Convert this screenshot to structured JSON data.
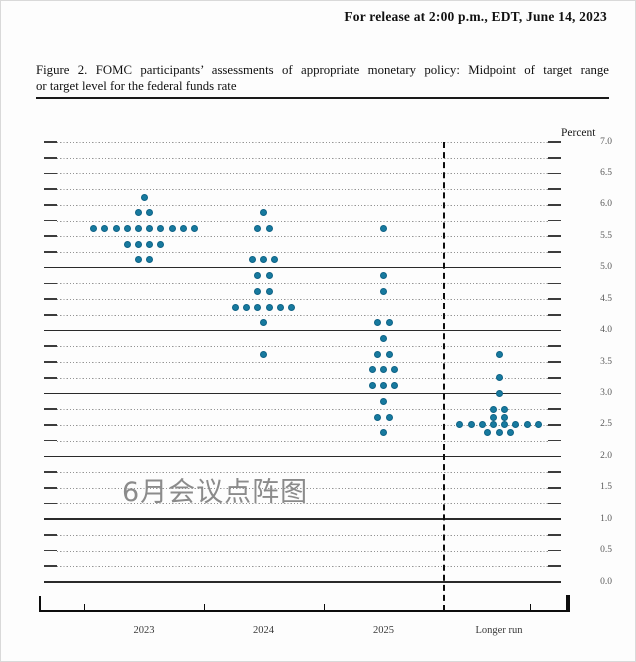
{
  "header": {
    "release_line": "For release at 2:00 p.m., EDT, June 14, 2023"
  },
  "caption": {
    "line1": "Figure 2.  FOMC participants’ assessments of appropriate monetary policy:  Midpoint of target range",
    "line2": "or target level for the federal funds rate"
  },
  "watermark": "6月会议点阵图",
  "chart_data": {
    "type": "scatter",
    "title": "FOMC participants’ assessments of appropriate monetary policy: Midpoint of target range or target level for the federal funds rate",
    "ylabel": "Percent",
    "ylim": [
      0.0,
      7.0
    ],
    "grid_interval": 0.25,
    "label_interval": 0.5,
    "solid_gridlines": [
      0,
      1,
      2,
      3,
      4,
      5
    ],
    "ytick_labels": [
      "7.0",
      "6.5",
      "6.0",
      "5.5",
      "5.0",
      "4.5",
      "4.0",
      "3.5",
      "3.0",
      "2.5",
      "2.0",
      "1.5",
      "1.0",
      "0.5",
      "0.0"
    ],
    "categories": [
      "2023",
      "2024",
      "2025",
      "Longer run"
    ],
    "dot_color": "#177a9f",
    "dot_edge_color": "#0f6386",
    "series": [
      {
        "name": "2023",
        "dots": [
          {
            "rate": 6.125,
            "count": 1
          },
          {
            "rate": 5.875,
            "count": 2
          },
          {
            "rate": 5.625,
            "count": 10
          },
          {
            "rate": 5.375,
            "count": 4
          },
          {
            "rate": 5.125,
            "count": 2
          }
        ]
      },
      {
        "name": "2024",
        "dots": [
          {
            "rate": 5.875,
            "count": 1
          },
          {
            "rate": 5.625,
            "count": 2
          },
          {
            "rate": 5.125,
            "count": 3
          },
          {
            "rate": 4.875,
            "count": 2
          },
          {
            "rate": 4.625,
            "count": 2
          },
          {
            "rate": 4.375,
            "count": 6
          },
          {
            "rate": 4.125,
            "count": 1
          },
          {
            "rate": 3.625,
            "count": 1
          }
        ]
      },
      {
        "name": "2025",
        "dots": [
          {
            "rate": 5.625,
            "count": 1
          },
          {
            "rate": 4.875,
            "count": 1
          },
          {
            "rate": 4.625,
            "count": 1
          },
          {
            "rate": 4.125,
            "count": 2
          },
          {
            "rate": 3.875,
            "count": 1
          },
          {
            "rate": 3.625,
            "count": 2
          },
          {
            "rate": 3.375,
            "count": 3
          },
          {
            "rate": 3.125,
            "count": 3
          },
          {
            "rate": 2.875,
            "count": 1
          },
          {
            "rate": 2.625,
            "count": 2
          },
          {
            "rate": 2.375,
            "count": 1
          }
        ]
      },
      {
        "name": "Longer run",
        "dots": [
          {
            "rate": 3.625,
            "count": 1
          },
          {
            "rate": 3.25,
            "count": 1
          },
          {
            "rate": 3.0,
            "count": 1
          },
          {
            "rate": 2.75,
            "count": 2
          },
          {
            "rate": 2.625,
            "count": 2
          },
          {
            "rate": 2.5,
            "count": 8
          },
          {
            "rate": 2.375,
            "count": 3
          }
        ]
      }
    ]
  }
}
